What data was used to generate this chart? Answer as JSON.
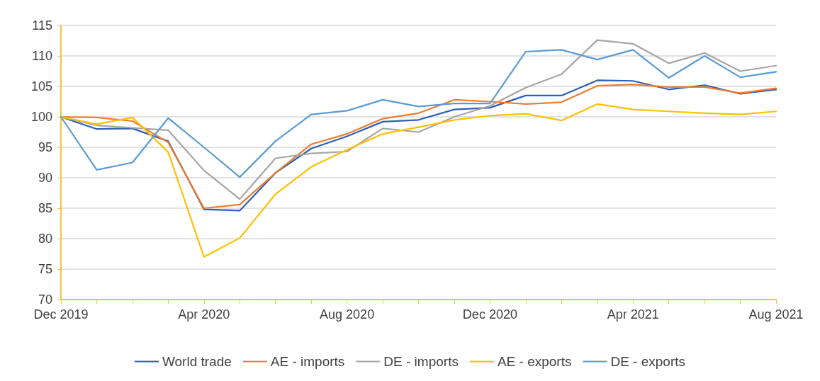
{
  "chart_data": {
    "type": "line",
    "categories": [
      "Dec 2019",
      null,
      null,
      null,
      "Apr 2020",
      null,
      null,
      null,
      "Aug 2020",
      null,
      null,
      null,
      "Dec 2020",
      null,
      null,
      null,
      "Apr 2021",
      null,
      null,
      null,
      "Aug 2021"
    ],
    "ylim": [
      70,
      115
    ],
    "yticks": [
      70,
      75,
      80,
      85,
      90,
      95,
      100,
      105,
      110,
      115
    ],
    "grid": "y",
    "legend": "bottom",
    "marker": "none",
    "line_style": "solid",
    "series": [
      {
        "name": "World trade",
        "color": "#2e5fb5",
        "values": [
          100,
          98,
          98.1,
          96,
          84.8,
          84.6,
          90.8,
          94.8,
          96.8,
          99.2,
          99.5,
          101.2,
          101.5,
          103.5,
          103.5,
          106,
          105.9,
          104.5,
          105.2,
          103.8,
          104.5
        ]
      },
      {
        "name": "AE - imports",
        "color": "#ed7d31",
        "values": [
          100,
          99.9,
          99.3,
          95.8,
          85,
          85.6,
          90.8,
          95.5,
          97.2,
          99.7,
          100.6,
          102.8,
          102.5,
          102.1,
          102.4,
          105.1,
          105.3,
          104.9,
          104.9,
          103.9,
          104.7
        ]
      },
      {
        "name": "DE - imports",
        "color": "#a5a5a5",
        "values": [
          100,
          98.6,
          98.2,
          97.8,
          91.2,
          86.5,
          93.2,
          94,
          94.3,
          98.1,
          97.5,
          100,
          101.8,
          104.8,
          107,
          112.6,
          112,
          108.8,
          110.5,
          107.5,
          108.4
        ]
      },
      {
        "name": "AE - exports",
        "color": "#ffc000",
        "values": [
          100,
          98.8,
          99.9,
          94.2,
          77,
          80.1,
          87.3,
          91.8,
          94.6,
          97.2,
          98.3,
          99.5,
          100.2,
          100.5,
          99.4,
          102.1,
          101.2,
          100.9,
          100.6,
          100.4,
          100.9
        ]
      },
      {
        "name": "DE - exports",
        "color": "#5b9bd5",
        "values": [
          100,
          91.3,
          92.5,
          99.8,
          95,
          90.1,
          96,
          100.4,
          101,
          102.8,
          101.7,
          102.2,
          102.2,
          110.7,
          111,
          109.4,
          111,
          106.4,
          110,
          106.5,
          107.4
        ]
      }
    ]
  }
}
